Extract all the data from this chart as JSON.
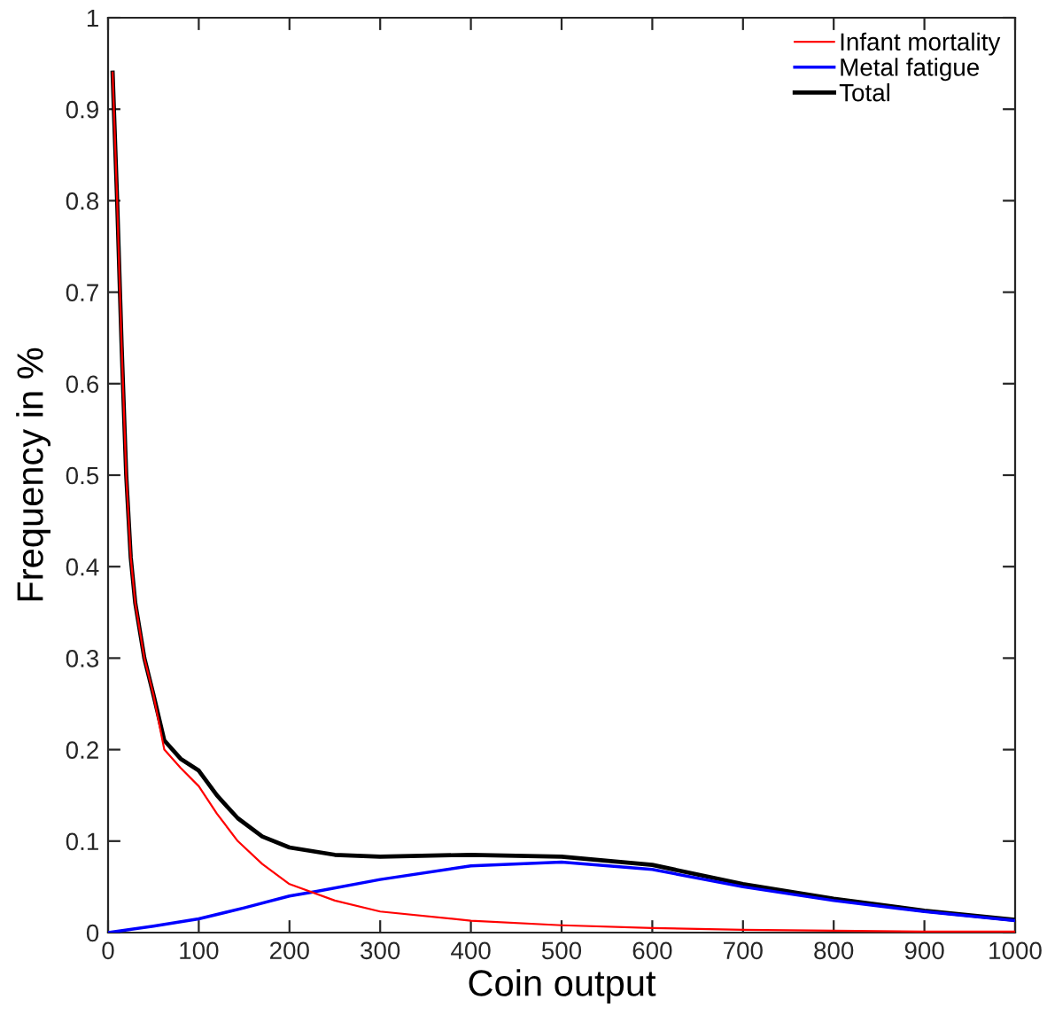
{
  "chart_data": {
    "type": "line",
    "xlabel": "Coin output",
    "ylabel": "Frequency in %",
    "xlim": [
      0,
      1000
    ],
    "ylim": [
      0,
      1
    ],
    "xticks": [
      0,
      100,
      200,
      300,
      400,
      500,
      600,
      700,
      800,
      900,
      1000
    ],
    "yticks": [
      0,
      0.1,
      0.2,
      0.3,
      0.4,
      0.5,
      0.6,
      0.7,
      0.8,
      0.9,
      1
    ],
    "grid": false,
    "legend": "top right",
    "marker": "none",
    "line_style": "solid",
    "series": [
      {
        "name": "Infant mortality",
        "color": "#ff0000",
        "x": [
          5,
          10,
          15,
          20,
          25,
          30,
          40,
          50,
          62,
          80,
          100,
          120,
          143,
          170,
          200,
          250,
          300,
          400,
          500,
          600,
          700,
          800,
          900,
          1000
        ],
        "values": [
          0.94,
          0.8,
          0.64,
          0.5,
          0.41,
          0.36,
          0.3,
          0.26,
          0.2,
          0.18,
          0.16,
          0.13,
          0.1,
          0.075,
          0.053,
          0.035,
          0.023,
          0.013,
          0.008,
          0.005,
          0.003,
          0.002,
          0.001,
          0.001
        ]
      },
      {
        "name": "Metal fatigue",
        "color": "#0000ff",
        "x": [
          0,
          50,
          100,
          150,
          200,
          230,
          300,
          400,
          500,
          600,
          700,
          800,
          900,
          1000
        ],
        "values": [
          0,
          0.007,
          0.015,
          0.027,
          0.04,
          0.045,
          0.058,
          0.073,
          0.077,
          0.069,
          0.05,
          0.035,
          0.023,
          0.013
        ]
      },
      {
        "name": "Total",
        "color": "#000000",
        "x": [
          5,
          10,
          15,
          20,
          25,
          30,
          40,
          50,
          62,
          80,
          100,
          120,
          143,
          170,
          200,
          250,
          300,
          400,
          500,
          600,
          700,
          800,
          900,
          1000
        ],
        "values": [
          0.94,
          0.8,
          0.64,
          0.5,
          0.41,
          0.36,
          0.3,
          0.26,
          0.21,
          0.19,
          0.177,
          0.15,
          0.125,
          0.105,
          0.093,
          0.085,
          0.083,
          0.085,
          0.083,
          0.074,
          0.053,
          0.037,
          0.024,
          0.014
        ]
      }
    ]
  }
}
